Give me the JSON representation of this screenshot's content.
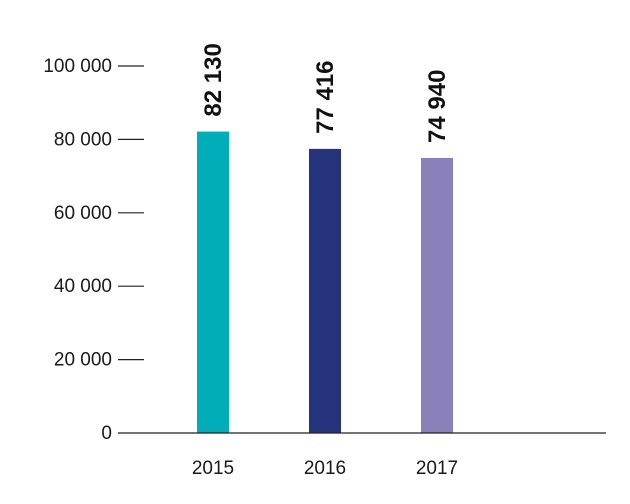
{
  "chart_data": {
    "type": "bar",
    "categories": [
      "2015",
      "2016",
      "2017"
    ],
    "values": [
      82130,
      77416,
      74940
    ],
    "value_labels": [
      "82 130",
      "77 416",
      "74 940"
    ],
    "colors": [
      "#00adb9",
      "#25337c",
      "#8a80ba"
    ],
    "y_ticks": [
      {
        "value": 0,
        "label": "0"
      },
      {
        "value": 20000,
        "label": "20 000"
      },
      {
        "value": 40000,
        "label": "40 000"
      },
      {
        "value": 60000,
        "label": "60 000"
      },
      {
        "value": 80000,
        "label": "80 000"
      },
      {
        "value": 100000,
        "label": "100 000"
      }
    ],
    "ylim": [
      0,
      100000
    ],
    "grid": false,
    "legend": "none"
  }
}
